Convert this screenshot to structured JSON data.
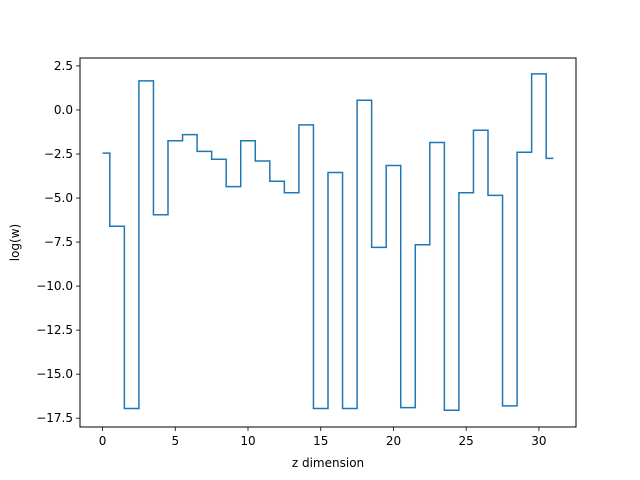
{
  "chart_data": {
    "type": "line",
    "drawstyle": "steps-mid",
    "title": "",
    "xlabel": "z dimension",
    "ylabel": "log(w)",
    "xlim": [
      -1.55,
      32.55
    ],
    "ylim": [
      -18.0,
      2.95
    ],
    "xticks": [
      0,
      5,
      10,
      15,
      20,
      25,
      30
    ],
    "xtick_labels": [
      "0",
      "5",
      "10",
      "15",
      "20",
      "25",
      "30"
    ],
    "yticks": [
      -17.5,
      -15.0,
      -12.5,
      -10.0,
      -7.5,
      -5.0,
      -2.5,
      0.0,
      2.5
    ],
    "ytick_labels": [
      "−17.5",
      "−15.0",
      "−12.5",
      "−10.0",
      "−7.5",
      "−5.0",
      "−2.5",
      "0.0",
      "2.5"
    ],
    "grid": false,
    "series": [
      {
        "color": "#1f77b4",
        "x": [
          0,
          1,
          2,
          3,
          4,
          5,
          6,
          7,
          8,
          9,
          10,
          11,
          12,
          13,
          14,
          15,
          16,
          17,
          18,
          19,
          20,
          21,
          22,
          23,
          24,
          25,
          26,
          27,
          28,
          29,
          30,
          31
        ],
        "y": [
          -2.45,
          -6.6,
          -16.95,
          1.65,
          -5.95,
          -1.75,
          -1.4,
          -2.35,
          -2.8,
          -4.35,
          -1.75,
          -2.9,
          -4.05,
          -4.7,
          -0.85,
          -16.95,
          -3.55,
          -16.95,
          0.55,
          -7.8,
          -3.15,
          -16.9,
          -7.65,
          -1.85,
          -17.05,
          -4.7,
          -1.15,
          -4.85,
          -16.8,
          -2.4,
          2.05,
          -2.75
        ]
      }
    ]
  }
}
